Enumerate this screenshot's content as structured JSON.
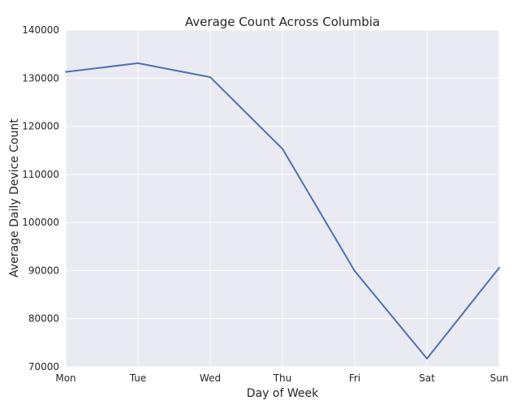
{
  "chart_data": {
    "type": "line",
    "title": "Average Count Across Columbia",
    "xlabel": "Day of Week",
    "ylabel": "Average Daily Device Count",
    "categories": [
      "Mon",
      "Tue",
      "Wed",
      "Thu",
      "Fri",
      "Sat",
      "Sun"
    ],
    "series": [
      {
        "values": [
          131300,
          133100,
          130200,
          115300,
          89900,
          71700,
          90600
        ]
      }
    ],
    "ylim": [
      70000,
      140000
    ],
    "yticks": [
      "70000",
      "80000",
      "90000",
      "100000",
      "110000",
      "120000",
      "130000",
      "140000"
    ],
    "grid": true,
    "colors": {
      "plot_background": "#EAEAF2",
      "grid": "#FFFFFF",
      "line": "#4C72B0"
    }
  }
}
